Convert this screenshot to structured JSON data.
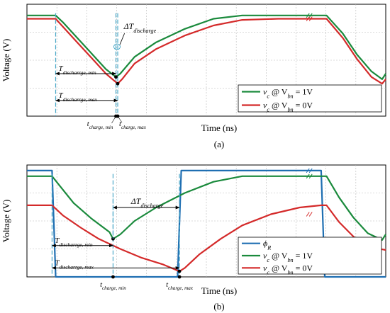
{
  "chart_data": [
    {
      "panel": "(a)",
      "type": "line",
      "xlabel": "Time (ns)",
      "ylabel": "Voltage (V)",
      "xlim": [
        0,
        100
      ],
      "ylim": [
        0,
        1
      ],
      "grid": true,
      "legend_position": "bottom-right",
      "legend": [
        {
          "text": "v",
          "sub1": "c",
          "mid": " @ V",
          "sub2": "bn",
          "tail": " = 1V",
          "color": "#1a8a3c"
        },
        {
          "text": "v",
          "sub1": "c",
          "mid": " @ V",
          "sub2": "bn",
          "tail": " = 0V",
          "color": "#d42a2a"
        }
      ],
      "series": [
        {
          "color": "#1a8a3c",
          "x": [
            0,
            8,
            10,
            14,
            18,
            22,
            24.8,
            26,
            30,
            36,
            44,
            52,
            60,
            70,
            82,
            83.5,
            88,
            92,
            96,
            99,
            100
          ],
          "y": [
            0.9,
            0.9,
            0.84,
            0.7,
            0.56,
            0.42,
            0.35,
            0.38,
            0.53,
            0.66,
            0.78,
            0.87,
            0.9,
            0.9,
            0.9,
            0.9,
            0.74,
            0.55,
            0.4,
            0.33,
            0.38
          ]
        },
        {
          "color": "#d42a2a",
          "x": [
            0,
            8,
            10,
            14,
            18,
            22,
            25.3,
            26.5,
            30,
            36,
            44,
            52,
            60,
            70,
            82,
            83.5,
            88,
            92,
            96,
            99,
            100
          ],
          "y": [
            0.87,
            0.87,
            0.8,
            0.66,
            0.52,
            0.38,
            0.29,
            0.33,
            0.47,
            0.6,
            0.72,
            0.81,
            0.86,
            0.87,
            0.87,
            0.87,
            0.7,
            0.51,
            0.35,
            0.29,
            0.33
          ]
        }
      ],
      "annotations": {
        "delta": "ΔT",
        "delta_sub": "discharge",
        "arrow1": "T",
        "arrow1_sub": "discharrge, min",
        "arrow2": "T",
        "arrow2_sub": "discharrge, max",
        "tick1": "t",
        "tick1_sub": "charge, min",
        "tick2": "t",
        "tick2_sub": "charge, max"
      }
    },
    {
      "panel": "(b)",
      "type": "line",
      "xlabel": "Time (ns)",
      "ylabel": "Voltage (V)",
      "xlim": [
        0,
        100
      ],
      "ylim": [
        0,
        1
      ],
      "grid": true,
      "legend_position": "bottom-right",
      "legend": [
        {
          "text": "ϕ",
          "sub1": "R",
          "mid": "",
          "sub2": "",
          "tail": "",
          "color": "#1f6fb2"
        },
        {
          "text": "v",
          "sub1": "c",
          "mid": " @ V",
          "sub2": "bn",
          "tail": " = 1V",
          "color": "#1a8a3c"
        },
        {
          "text": "v",
          "sub1": "c",
          "mid": " @ V",
          "sub2": "bn",
          "tail": " = 0V",
          "color": "#d42a2a"
        }
      ],
      "series": [
        {
          "color": "#1f6fb2",
          "x": [
            0,
            7,
            8,
            42,
            43,
            82,
            83,
            100
          ],
          "y": [
            0.95,
            0.95,
            0.0,
            0.0,
            0.95,
            0.95,
            0.0,
            0.0
          ]
        },
        {
          "color": "#1a8a3c",
          "x": [
            0,
            7,
            9,
            13,
            18,
            23,
            24,
            26,
            30,
            36,
            44,
            52,
            60,
            70,
            82,
            83.5,
            87,
            91,
            95,
            99,
            100
          ],
          "y": [
            0.9,
            0.9,
            0.82,
            0.66,
            0.52,
            0.4,
            0.34,
            0.38,
            0.5,
            0.62,
            0.75,
            0.85,
            0.9,
            0.9,
            0.9,
            0.9,
            0.71,
            0.53,
            0.39,
            0.33,
            0.38
          ]
        },
        {
          "color": "#d42a2a",
          "x": [
            0,
            7,
            10,
            15,
            20,
            26,
            32,
            38,
            42.5,
            44,
            48,
            54,
            60,
            68,
            76,
            82,
            83.5,
            87,
            91,
            95,
            100
          ],
          "y": [
            0.64,
            0.64,
            0.55,
            0.44,
            0.34,
            0.25,
            0.17,
            0.11,
            0.05,
            0.08,
            0.2,
            0.34,
            0.46,
            0.56,
            0.62,
            0.64,
            0.64,
            0.49,
            0.36,
            0.27,
            0.24
          ]
        }
      ],
      "annotations": {
        "delta": "ΔT",
        "delta_sub": "discharge",
        "arrow1": "T",
        "arrow1_sub": "discharrge, min",
        "arrow2": "T",
        "arrow2_sub": "discharrge, max",
        "tick1": "t",
        "tick1_sub": "charge, min",
        "tick2": "t",
        "tick2_sub": "charge, max"
      }
    }
  ]
}
